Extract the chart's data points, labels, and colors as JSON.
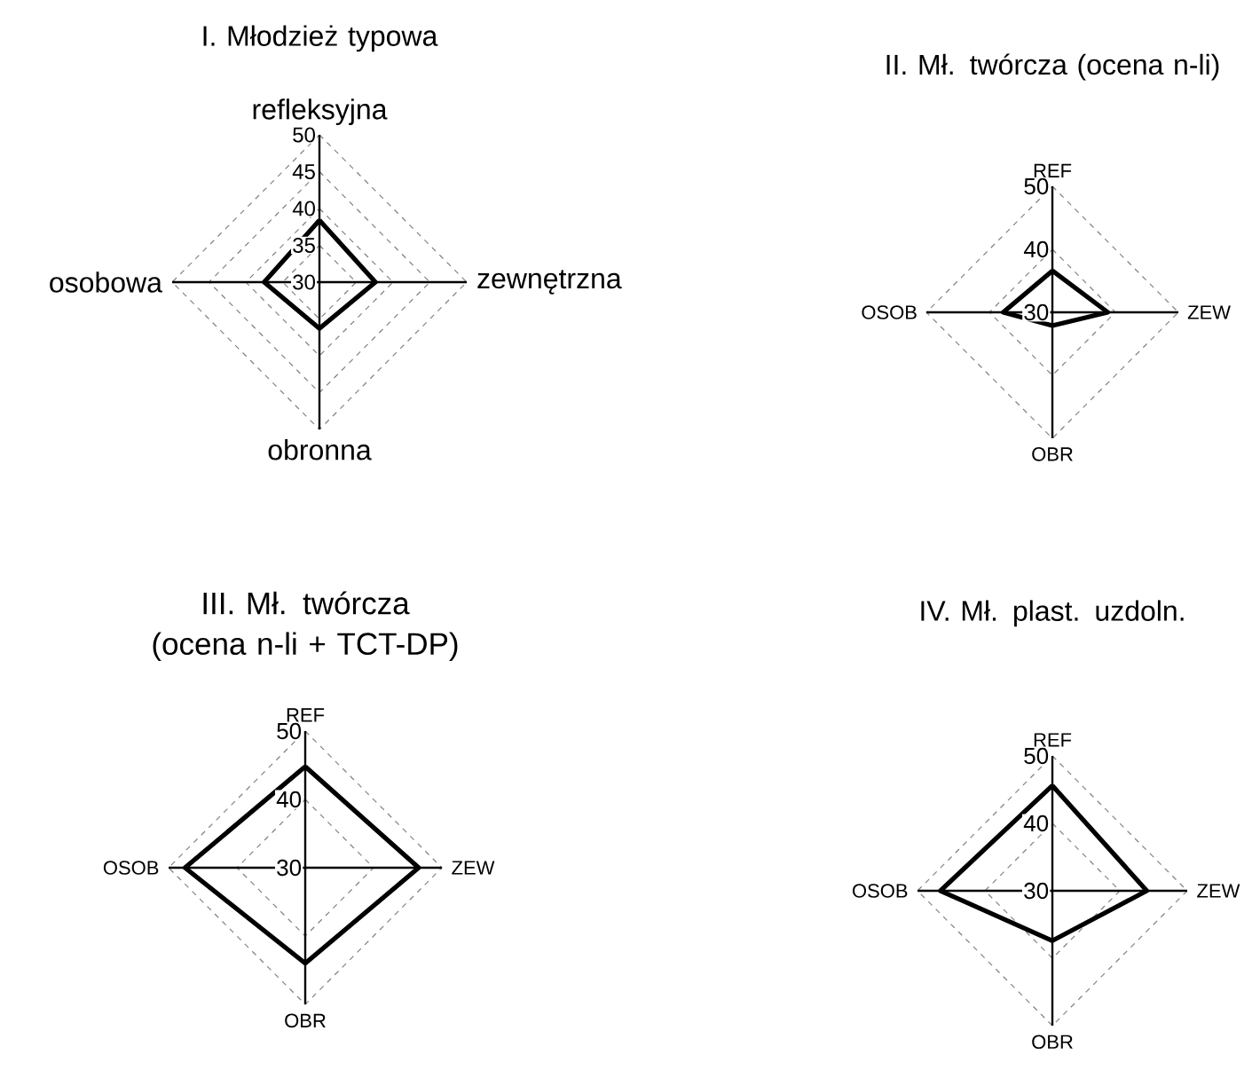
{
  "chart_data": [
    {
      "type": "radar",
      "title": "I. Młodzież typowa",
      "categories": [
        "refleksyjna",
        "zewnętrzna",
        "obronna",
        "osobowa"
      ],
      "ylim": [
        30,
        50
      ],
      "yticks": [
        30,
        35,
        40,
        45,
        50
      ],
      "grid": true,
      "series": [
        {
          "color": "#000000",
          "values": [
            38.4,
            37.6,
            36.3,
            37.5
          ]
        }
      ]
    },
    {
      "type": "radar",
      "title": "II. Mł. twórcza (ocena n-li)",
      "categories": [
        "REF",
        "ZEW",
        "OBR",
        "OSOB"
      ],
      "ylim": [
        30,
        50
      ],
      "yticks": [
        30,
        40,
        50
      ],
      "grid": true,
      "series": [
        {
          "color": "#000000",
          "values": [
            36.6,
            38.8,
            32.1,
            37.8
          ]
        }
      ]
    },
    {
      "type": "radar",
      "title": "III. Mł. twórcza (ocena n-li + TCT-DP)",
      "categories": [
        "REF",
        "ZEW",
        "OBR",
        "OSOB"
      ],
      "ylim": [
        30,
        50
      ],
      "yticks": [
        30,
        40,
        50
      ],
      "grid": true,
      "series": [
        {
          "color": "#000000",
          "values": [
            44.8,
            46.6,
            44.0,
            47.6
          ]
        }
      ]
    },
    {
      "type": "radar",
      "title": "IV. Mł. plast. uzdoln.",
      "categories": [
        "REF",
        "ZEW",
        "OBR",
        "OSOB"
      ],
      "ylim": [
        30,
        50
      ],
      "yticks": [
        30,
        40,
        50
      ],
      "grid": true,
      "series": [
        {
          "color": "#000000",
          "values": [
            45.6,
            44.0,
            37.4,
            46.6
          ]
        }
      ]
    }
  ]
}
